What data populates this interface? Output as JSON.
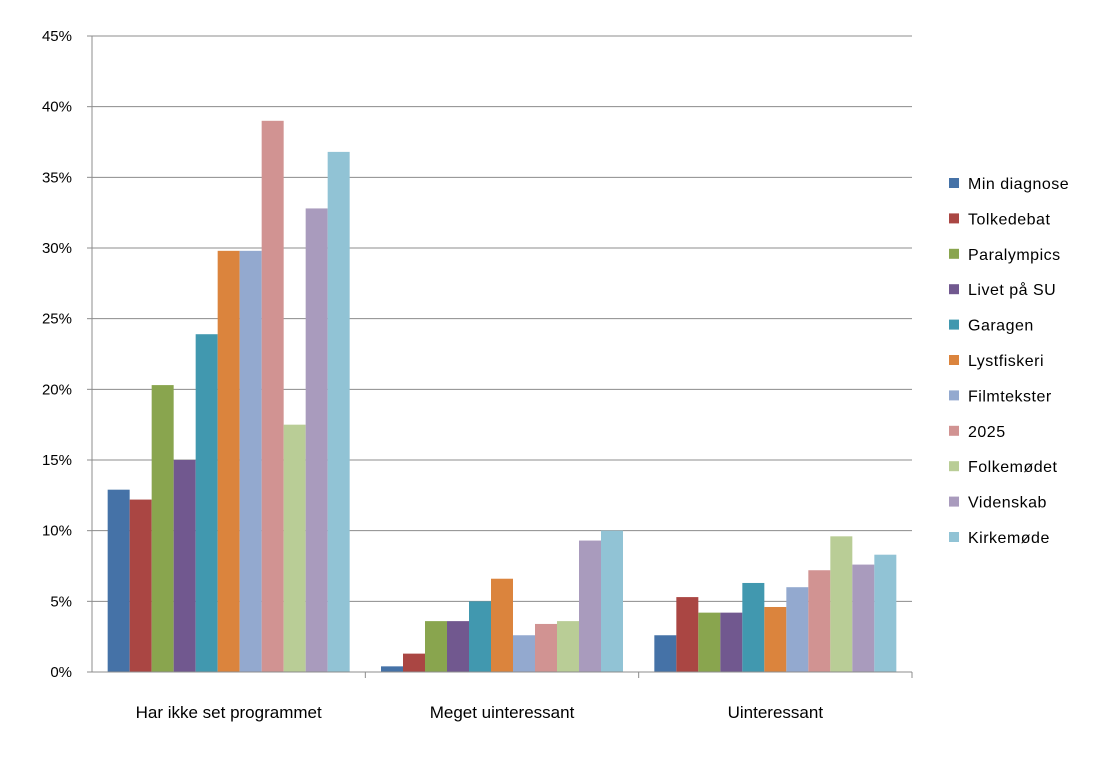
{
  "chart_data": {
    "type": "bar",
    "title": "",
    "xlabel": "",
    "ylabel": "",
    "categories": [
      "Har ikke set programmet",
      "Meget uinteressant",
      "Uinteressant"
    ],
    "ylim": [
      0,
      45
    ],
    "yticks": [
      0,
      5,
      10,
      15,
      20,
      25,
      30,
      35,
      40,
      45
    ],
    "ytick_labels": [
      "0%",
      "5%",
      "10%",
      "15%",
      "20%",
      "25%",
      "30%",
      "35%",
      "40%",
      "45%"
    ],
    "grid": true,
    "legend_position": "right",
    "series": [
      {
        "name": "Min diagnose",
        "color": "#4572A7",
        "values": [
          12.9,
          0.4,
          2.6
        ]
      },
      {
        "name": "Tolkedebat",
        "color": "#AA4643",
        "values": [
          12.2,
          1.3,
          5.3
        ]
      },
      {
        "name": "Paralympics",
        "color": "#89A54E",
        "values": [
          20.3,
          3.6,
          4.2
        ]
      },
      {
        "name": "Livet på SU",
        "color": "#71588F",
        "values": [
          15.0,
          3.6,
          4.2
        ]
      },
      {
        "name": "Garagen",
        "color": "#4198AF",
        "values": [
          23.9,
          5.0,
          6.3
        ]
      },
      {
        "name": "Lystfiskeri",
        "color": "#DB843D",
        "values": [
          29.8,
          6.6,
          4.6
        ]
      },
      {
        "name": "Filmtekster",
        "color": "#93A9CF",
        "values": [
          29.8,
          2.6,
          6.0
        ]
      },
      {
        "name": "2025",
        "color": "#D19392",
        "values": [
          39.0,
          3.4,
          7.2
        ]
      },
      {
        "name": "Folkemødet",
        "color": "#B9CD96",
        "values": [
          17.5,
          3.6,
          9.6
        ]
      },
      {
        "name": "Videnskab",
        "color": "#A99BBD",
        "values": [
          32.8,
          9.3,
          7.6
        ]
      },
      {
        "name": "Kirkemøde",
        "color": "#91C3D5",
        "values": [
          36.8,
          10.0,
          8.3
        ]
      }
    ]
  }
}
